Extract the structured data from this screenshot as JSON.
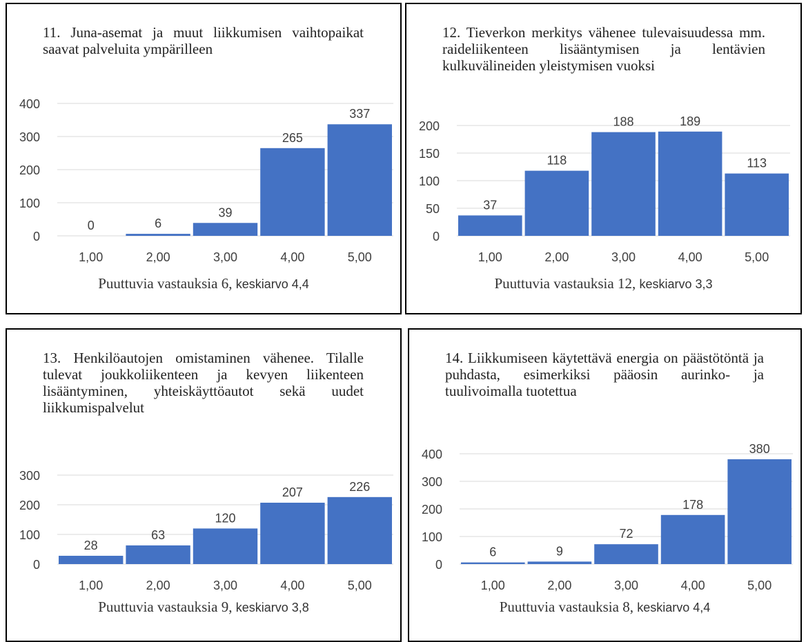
{
  "colors": {
    "bar": "#4472C4",
    "grid": "#d9d9d9",
    "text": "#404040"
  },
  "chart_data": [
    {
      "type": "bar",
      "title": "11. Juna-asemat ja muut liikkumisen vaihtopaikat saavat palveluita ympärilleen",
      "categories": [
        "1,00",
        "2,00",
        "3,00",
        "4,00",
        "5,00"
      ],
      "values": [
        0,
        6,
        39,
        265,
        337
      ],
      "yticks": [
        "0",
        "100",
        "200",
        "300",
        "400"
      ],
      "ylim": [
        0,
        400
      ],
      "footer_main": "Puuttuvia vastauksia 6, ",
      "footer_tail": "keskiarvo 4,4",
      "grid": true
    },
    {
      "type": "bar",
      "title": "12. Tieverkon merkitys vähenee tulevaisuudessa mm. raideliikenteen lisääntymisen ja lentävien kulkuvälineiden yleistymisen vuoksi",
      "categories": [
        "1,00",
        "2,00",
        "3,00",
        "4,00",
        "5,00"
      ],
      "values": [
        37,
        118,
        188,
        189,
        113
      ],
      "yticks": [
        "0",
        "50",
        "100",
        "150",
        "200"
      ],
      "ylim": [
        0,
        200
      ],
      "footer_main": "Puuttuvia vastauksia 12, ",
      "footer_tail": "keskiarvo 3,3",
      "grid": true
    },
    {
      "type": "bar",
      "title": "13. Henkilöautojen omistaminen vähenee. Tilalle tulevat joukkoliikenteen ja kevyen liikenteen lisääntyminen, yhteiskäyttöautot sekä uudet liikkumispalvelut",
      "categories": [
        "1,00",
        "2,00",
        "3,00",
        "4,00",
        "5,00"
      ],
      "values": [
        28,
        63,
        120,
        207,
        226
      ],
      "yticks": [
        "0",
        "100",
        "200",
        "300"
      ],
      "ylim": [
        0,
        300
      ],
      "footer_main": "Puuttuvia vastauksia 9, ",
      "footer_tail": "keskiarvo 3,8",
      "grid": true
    },
    {
      "type": "bar",
      "title": "14. Liikkumiseen käytettävä energia on päästötöntä ja puhdasta, esimerkiksi pääosin aurinko- ja tuulivoimalla tuotettua",
      "categories": [
        "1,00",
        "2,00",
        "3,00",
        "4,00",
        "5,00"
      ],
      "values": [
        6,
        9,
        72,
        178,
        380
      ],
      "yticks": [
        "0",
        "100",
        "200",
        "300",
        "400"
      ],
      "ylim": [
        0,
        400
      ],
      "footer_main": "Puuttuvia vastauksia 8, ",
      "footer_tail": "keskiarvo 4,4",
      "grid": true
    }
  ]
}
